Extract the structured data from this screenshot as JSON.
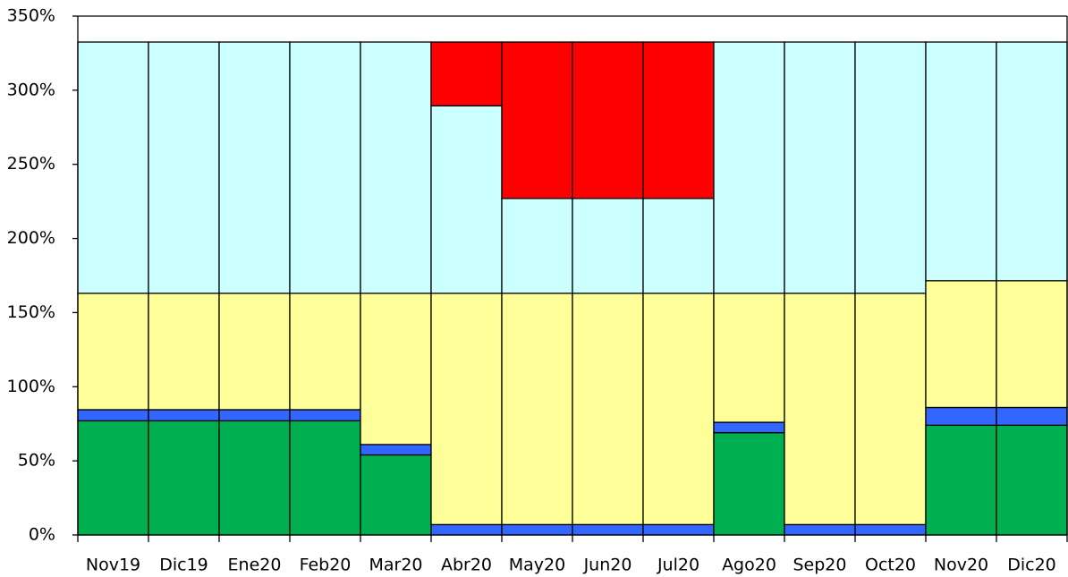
{
  "chart_data": {
    "type": "stacked-bar",
    "categories": [
      "Nov19",
      "Dic19",
      "Ene20",
      "Feb20",
      "Mar20",
      "Abr20",
      "May20",
      "Jun20",
      "Jul20",
      "Ago20",
      "Sep20",
      "Oct20",
      "Nov20",
      "Dic20"
    ],
    "series": [
      {
        "color": "#00b050",
        "values": [
          77,
          77,
          77,
          77,
          54,
          0,
          0,
          0,
          0,
          69,
          0,
          0,
          74,
          74
        ]
      },
      {
        "color": "#3366ff",
        "values": [
          7.5,
          7.5,
          7.5,
          7.5,
          7,
          7,
          7,
          7,
          7,
          7,
          7,
          7,
          12,
          12
        ]
      },
      {
        "color": "#ffff99",
        "values": [
          78.5,
          78.5,
          78.5,
          78.5,
          102,
          156,
          156,
          156,
          156,
          87,
          156,
          156,
          85.5,
          85.5
        ]
      },
      {
        "color": "#ccffff",
        "values": [
          169.5,
          169.5,
          169.5,
          169.5,
          169.5,
          126.5,
          64,
          64,
          64,
          169.5,
          169.5,
          169.5,
          161,
          161
        ]
      },
      {
        "color": "#ff0000",
        "values": [
          0,
          0,
          0,
          0,
          0,
          43,
          105.5,
          105.5,
          105.5,
          0,
          0,
          0,
          0,
          0
        ]
      }
    ],
    "ylim": [
      0,
      350
    ],
    "yticks": [
      {
        "value": 0,
        "label": "0%"
      },
      {
        "value": 50,
        "label": "50%"
      },
      {
        "value": 100,
        "label": "100%"
      },
      {
        "value": 150,
        "label": "150%"
      },
      {
        "value": 200,
        "label": "200%"
      },
      {
        "value": 250,
        "label": "250%"
      },
      {
        "value": 300,
        "label": "300%"
      },
      {
        "value": 350,
        "label": "350%"
      }
    ]
  }
}
